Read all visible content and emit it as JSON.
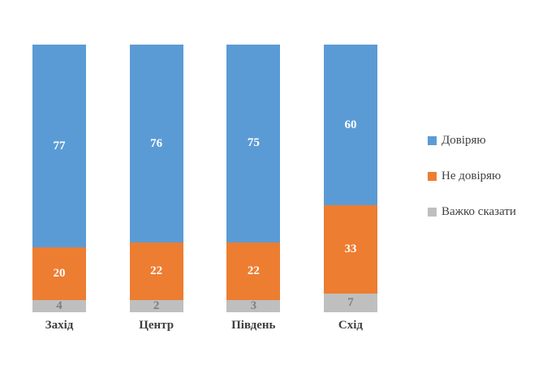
{
  "chart_data": {
    "type": "bar",
    "variant": "stacked-100",
    "orientation": "vertical",
    "categories": [
      "Захід",
      "Центр",
      "Південь",
      "Схід"
    ],
    "series": [
      {
        "name": "Довіряю",
        "color": "#5b9bd5",
        "text_color": "#ffffff",
        "values": [
          77,
          76,
          75,
          60
        ]
      },
      {
        "name": "Не довіряю",
        "color": "#ed7d31",
        "text_color": "#ffffff",
        "values": [
          20,
          22,
          22,
          33
        ]
      },
      {
        "name": "Важко сказати",
        "color": "#bfbfbf",
        "text_color": "#7f7f7f",
        "values": [
          4,
          2,
          3,
          7
        ]
      }
    ],
    "title": "",
    "xlabel": "",
    "ylabel": "",
    "ylim": [
      0,
      100
    ],
    "grid": false,
    "legend_position": "right",
    "data_labels": true
  }
}
